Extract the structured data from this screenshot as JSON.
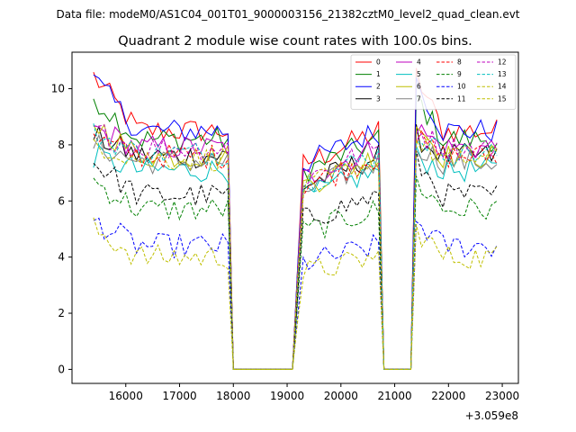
{
  "chart_data": {
    "type": "line",
    "suptitle": "Data file: modeM0/AS1C04_001T01_9000003156_21382cztM0_level2_quad_clean.evt",
    "title": "Quadrant 2 module wise count rates with 100.0s bins.",
    "xlabel": "",
    "ylabel": "",
    "x_offset_label": "+3.059e8",
    "xlim": [
      15000,
      23300
    ],
    "ylim": [
      -0.5,
      11.3
    ],
    "xticks": [
      16000,
      17000,
      18000,
      19000,
      20000,
      21000,
      22000,
      23000
    ],
    "yticks": [
      0,
      2,
      4,
      6,
      8,
      10
    ],
    "legend_position": "top-right",
    "legend_columns": 4,
    "series": [
      {
        "name": "0",
        "color": "#ff0000",
        "style": "solid",
        "level": 8.5,
        "start": 10.45
      },
      {
        "name": "1",
        "color": "#008000",
        "style": "solid",
        "level": 8.2,
        "start": 9.7
      },
      {
        "name": "2",
        "color": "#0000ff",
        "style": "solid",
        "level": 8.5,
        "start": 10.3
      },
      {
        "name": "3",
        "color": "#000000",
        "style": "solid",
        "level": 7.6,
        "start": 8.3
      },
      {
        "name": "4",
        "color": "#bf00bf",
        "style": "solid",
        "level": 7.9,
        "start": 8.6
      },
      {
        "name": "5",
        "color": "#00bfbf",
        "style": "solid",
        "level": 7.1,
        "start": 7.6
      },
      {
        "name": "6",
        "color": "#bfbf00",
        "style": "solid",
        "level": 7.6,
        "start": 8.8
      },
      {
        "name": "7",
        "color": "#808080",
        "style": "solid",
        "level": 7.4,
        "start": 8.0
      },
      {
        "name": "8",
        "color": "#ff0000",
        "style": "dashed",
        "level": 7.6,
        "start": 8.2
      },
      {
        "name": "9",
        "color": "#008000",
        "style": "dashed",
        "level": 5.7,
        "start": 6.7
      },
      {
        "name": "10",
        "color": "#0000ff",
        "style": "dashed",
        "level": 4.4,
        "start": 5.3
      },
      {
        "name": "11",
        "color": "#000000",
        "style": "dashed",
        "level": 6.2,
        "start": 7.4
      },
      {
        "name": "12",
        "color": "#bf00bf",
        "style": "dashed",
        "level": 7.9,
        "start": 8.5
      },
      {
        "name": "13",
        "color": "#00bfbf",
        "style": "dashed",
        "level": 7.7,
        "start": 8.4
      },
      {
        "name": "14",
        "color": "#bfbf00",
        "style": "dashed",
        "level": 4.0,
        "start": 5.0
      },
      {
        "name": "15",
        "color": "#bfbf00",
        "style": "dashed",
        "level": 7.5,
        "start": 8.1
      }
    ],
    "segments": [
      {
        "x_start": 15400,
        "x_end": 17900,
        "step": 100,
        "profile": "decay"
      },
      {
        "x_start": 18000,
        "x_end": 19100,
        "step": 100,
        "profile": "zero"
      },
      {
        "x_start": 19200,
        "x_end": 20700,
        "step": 100,
        "profile": "rise"
      },
      {
        "x_start": 20800,
        "x_end": 21300,
        "step": 100,
        "profile": "zero"
      },
      {
        "x_start": 21400,
        "x_end": 22900,
        "step": 100,
        "profile": "decay"
      }
    ]
  }
}
